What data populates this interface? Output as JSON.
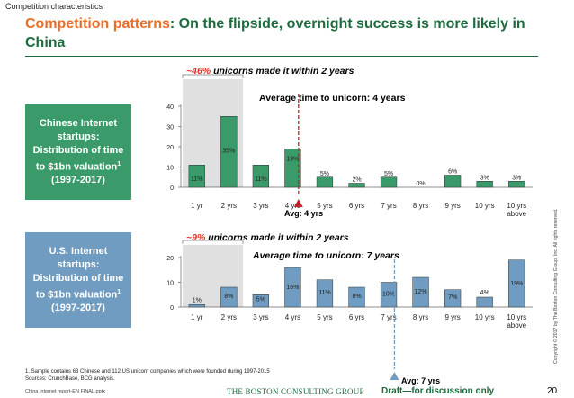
{
  "header": {
    "tracker": "Competition characteristics"
  },
  "title": {
    "highlight": "Competition patterns",
    "rest": ": On the flipside, overnight success is more likely in China"
  },
  "panels": [
    {
      "box_label": "Chinese Internet startups: Distribution of time to $1bn valuation",
      "box_sup": "1",
      "box_years": "(1997-2017)",
      "share_pct": "~46%",
      "share_text": " unicorns made it within 2 years",
      "avg_title": "Average time to unicorn: 4 years",
      "avg_label": "Avg: 4 yrs"
    },
    {
      "box_label": "U.S. Internet startups: Distribution of time to $1bn valuation",
      "box_sup": "1",
      "box_years": "(1997-2017)",
      "share_pct": "~9%",
      "share_text": " unicorns made it within 2 years",
      "avg_title": "Average time to unicorn: 7 years",
      "avg_label": "Avg: 7 yrs"
    }
  ],
  "chart_data": [
    {
      "type": "bar",
      "categories": [
        "1 yr",
        "2 yrs",
        "3 yrs",
        "4 yrs",
        "5 yrs",
        "6 yrs",
        "7 yrs",
        "8 yrs",
        "9 yrs",
        "10 yrs",
        "10 yrs above"
      ],
      "values": [
        11,
        35,
        11,
        19,
        5,
        2,
        5,
        0,
        6,
        3,
        3
      ],
      "data_labels": [
        "11%",
        "35%",
        "11%",
        "19%",
        "5%",
        "2%",
        "5%",
        "0%",
        "6%",
        "3%",
        "3%"
      ],
      "ylim": [
        0,
        40
      ],
      "yticks": [
        0,
        10,
        20,
        30,
        40
      ],
      "highlight_first_n": 2,
      "average_marker_x": 4,
      "bar_color": "#3a9a69",
      "highlight_color": "#e0e0e0",
      "marker_color": "#c8202a"
    },
    {
      "type": "bar",
      "categories": [
        "1 yr",
        "2 yrs",
        "3 yrs",
        "4 yrs",
        "5 yrs",
        "6 yrs",
        "7 yrs",
        "8 yrs",
        "9 yrs",
        "10 yrs",
        "10 yrs above"
      ],
      "values": [
        1,
        8,
        5,
        16,
        11,
        8,
        10,
        12,
        7,
        4,
        19
      ],
      "data_labels": [
        "1%",
        "8%",
        "5%",
        "16%",
        "11%",
        "8%",
        "10%",
        "12%",
        "7%",
        "4%",
        "19%"
      ],
      "ylim": [
        0,
        20
      ],
      "yticks": [
        0,
        10,
        20
      ],
      "highlight_first_n": 2,
      "average_marker_x": 7,
      "bar_color": "#6f9cc0",
      "highlight_color": "#e0e0e0",
      "marker_color": "#6f9cc0"
    }
  ],
  "footnote": [
    "1. Sample contains 63 Chinese and 112 US unicorn companies which were founded during 1997-2015",
    "Sources: CrunchBase, BCG analysis."
  ],
  "footer": {
    "file": "China Internet report-EN FINAL.pptx",
    "logo": "THE BOSTON CONSULTING GROUP",
    "draft": "Draft—for discussion only",
    "page": "20",
    "copyright": "Copyright © 2017 by The Boston Consulting Group, Inc. All rights reserved."
  }
}
